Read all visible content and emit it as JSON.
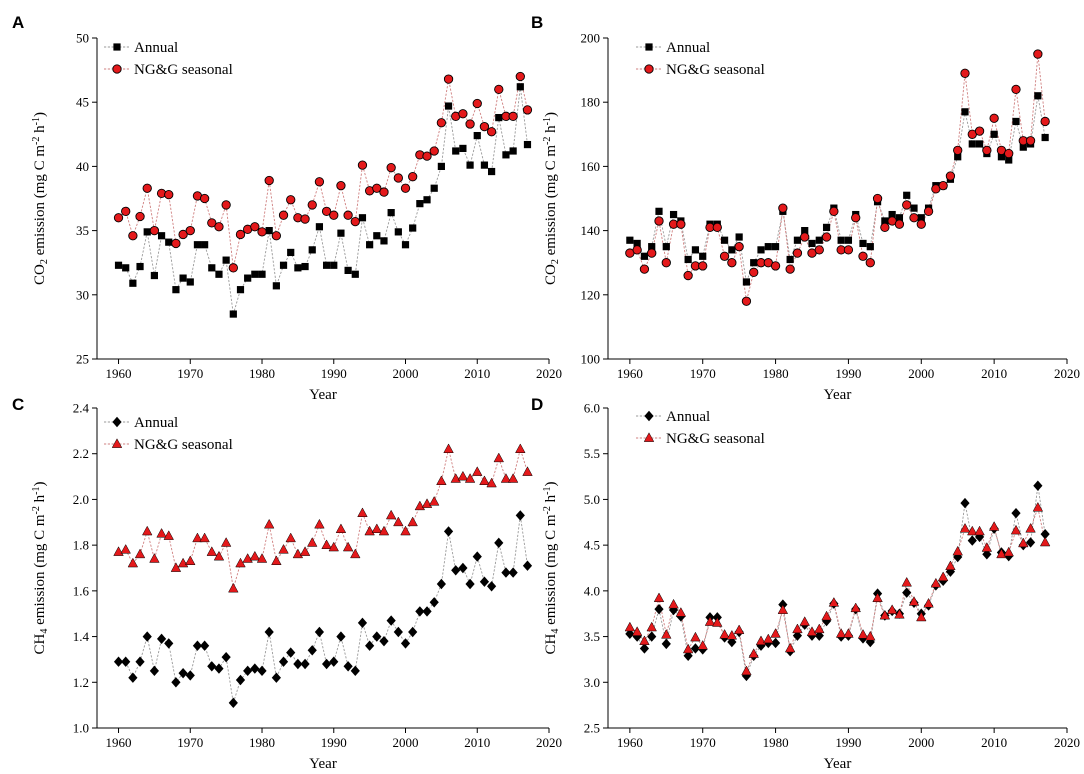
{
  "chart_data": [
    {
      "panel": "A",
      "type": "line",
      "marker_style": "square-circle",
      "ylabel_parts": [
        "CO",
        "2",
        " emission (mg C m",
        "-2",
        " h",
        "-1",
        ")"
      ],
      "xlabel": "Year",
      "xlim": [
        1957,
        2020
      ],
      "ylim": [
        25,
        50
      ],
      "xticks": [
        1960,
        1970,
        1980,
        1990,
        2000,
        2010,
        2020
      ],
      "yticks": [
        25,
        30,
        35,
        40,
        45,
        50
      ],
      "legend_position": "top-left",
      "x": [
        1960,
        1961,
        1962,
        1963,
        1964,
        1965,
        1966,
        1967,
        1968,
        1969,
        1970,
        1971,
        1972,
        1973,
        1974,
        1975,
        1976,
        1977,
        1978,
        1979,
        1980,
        1981,
        1982,
        1983,
        1984,
        1985,
        1986,
        1987,
        1988,
        1989,
        1990,
        1991,
        1992,
        1993,
        1994,
        1995,
        1996,
        1997,
        1998,
        1999,
        2000,
        2001,
        2002,
        2003,
        2004,
        2005,
        2006,
        2007,
        2008,
        2009,
        2010,
        2011,
        2012,
        2013,
        2014,
        2015,
        2016,
        2017
      ],
      "series": [
        {
          "name": "Annual",
          "values": [
            32.3,
            32.1,
            30.9,
            32.2,
            34.9,
            31.5,
            34.6,
            34.1,
            30.4,
            31.3,
            31.0,
            33.9,
            33.9,
            32.1,
            31.6,
            32.7,
            28.5,
            30.4,
            31.3,
            31.6,
            31.6,
            35.0,
            30.7,
            32.3,
            33.3,
            32.1,
            32.2,
            33.5,
            35.3,
            32.3,
            32.3,
            34.8,
            31.9,
            31.6,
            36.0,
            33.9,
            34.6,
            34.2,
            36.4,
            34.9,
            33.9,
            35.2,
            37.1,
            37.4,
            38.3,
            40.0,
            44.7,
            41.2,
            41.4,
            40.1,
            42.4,
            40.1,
            39.6,
            43.8,
            40.9,
            41.2,
            46.2,
            41.7
          ]
        },
        {
          "name": "NG&G seasonal",
          "values": [
            36.0,
            36.5,
            34.6,
            36.1,
            38.3,
            35.0,
            37.9,
            37.8,
            34.0,
            34.7,
            35.0,
            37.7,
            37.5,
            35.6,
            35.3,
            37.0,
            32.1,
            34.7,
            35.1,
            35.3,
            34.9,
            38.9,
            34.6,
            36.2,
            37.4,
            36.0,
            35.9,
            37.0,
            38.8,
            36.5,
            36.2,
            38.5,
            36.2,
            35.7,
            40.1,
            38.1,
            38.3,
            38.0,
            39.9,
            39.1,
            38.3,
            39.2,
            40.9,
            40.8,
            41.2,
            43.4,
            46.8,
            43.9,
            44.1,
            43.3,
            44.9,
            43.1,
            42.7,
            46.0,
            43.9,
            43.9,
            47.0,
            44.4
          ]
        }
      ]
    },
    {
      "panel": "B",
      "type": "line",
      "marker_style": "square-circle",
      "ylabel_parts": [
        "CO",
        "2",
        " emission (mg C m",
        "-2",
        " h",
        "-1",
        ")"
      ],
      "xlabel": "Year",
      "xlim": [
        1957,
        2020
      ],
      "ylim": [
        100,
        200
      ],
      "xticks": [
        1960,
        1970,
        1980,
        1990,
        2000,
        2010,
        2020
      ],
      "yticks": [
        100,
        120,
        140,
        160,
        180,
        200
      ],
      "legend_position": "top-left",
      "x": [
        1960,
        1961,
        1962,
        1963,
        1964,
        1965,
        1966,
        1967,
        1968,
        1969,
        1970,
        1971,
        1972,
        1973,
        1974,
        1975,
        1976,
        1977,
        1978,
        1979,
        1980,
        1981,
        1982,
        1983,
        1984,
        1985,
        1986,
        1987,
        1988,
        1989,
        1990,
        1991,
        1992,
        1993,
        1994,
        1995,
        1996,
        1997,
        1998,
        1999,
        2000,
        2001,
        2002,
        2003,
        2004,
        2005,
        2006,
        2007,
        2008,
        2009,
        2010,
        2011,
        2012,
        2013,
        2014,
        2015,
        2016,
        2017
      ],
      "series": [
        {
          "name": "Annual",
          "values": [
            137,
            136,
            132,
            135,
            146,
            135,
            145,
            143,
            131,
            134,
            132,
            142,
            142,
            137,
            134,
            138,
            124,
            130,
            134,
            135,
            135,
            146,
            131,
            137,
            140,
            136,
            137,
            141,
            147,
            137,
            137,
            145,
            136,
            135,
            149,
            143,
            145,
            144,
            151,
            147,
            144,
            147,
            154,
            154,
            156,
            163,
            177,
            167,
            167,
            164,
            170,
            163,
            162,
            174,
            166,
            167,
            182,
            169
          ]
        },
        {
          "name": "NG&G seasonal",
          "values": [
            133,
            134,
            128,
            133,
            143,
            130,
            142,
            142,
            126,
            129,
            129,
            141,
            141,
            132,
            130,
            135,
            118,
            127,
            130,
            130,
            129,
            147,
            128,
            133,
            138,
            133,
            134,
            138,
            146,
            134,
            134,
            144,
            132,
            130,
            150,
            141,
            143,
            142,
            148,
            144,
            142,
            146,
            153,
            154,
            157,
            165,
            189,
            170,
            171,
            165,
            175,
            165,
            164,
            184,
            168,
            168,
            195,
            174
          ]
        }
      ]
    },
    {
      "panel": "C",
      "type": "line",
      "marker_style": "diamond-triangle",
      "ylabel_parts": [
        "CH",
        "4",
        " emission (mg C m",
        "-2",
        " h",
        "-1",
        ")"
      ],
      "xlabel": "Year",
      "xlim": [
        1957,
        2020
      ],
      "ylim": [
        1.0,
        2.4
      ],
      "xticks": [
        1960,
        1970,
        1980,
        1990,
        2000,
        2010,
        2020
      ],
      "yticks": [
        "1.0",
        "1.2",
        "1.4",
        "1.6",
        "1.8",
        "2.0",
        "2.2",
        "2.4"
      ],
      "legend_position": "top-left",
      "x": [
        1960,
        1961,
        1962,
        1963,
        1964,
        1965,
        1966,
        1967,
        1968,
        1969,
        1970,
        1971,
        1972,
        1973,
        1974,
        1975,
        1976,
        1977,
        1978,
        1979,
        1980,
        1981,
        1982,
        1983,
        1984,
        1985,
        1986,
        1987,
        1988,
        1989,
        1990,
        1991,
        1992,
        1993,
        1994,
        1995,
        1996,
        1997,
        1998,
        1999,
        2000,
        2001,
        2002,
        2003,
        2004,
        2005,
        2006,
        2007,
        2008,
        2009,
        2010,
        2011,
        2012,
        2013,
        2014,
        2015,
        2016,
        2017
      ],
      "series": [
        {
          "name": "Annual",
          "values": [
            1.29,
            1.29,
            1.22,
            1.29,
            1.4,
            1.25,
            1.39,
            1.37,
            1.2,
            1.24,
            1.23,
            1.36,
            1.36,
            1.27,
            1.26,
            1.31,
            1.11,
            1.21,
            1.25,
            1.26,
            1.25,
            1.42,
            1.22,
            1.29,
            1.33,
            1.28,
            1.28,
            1.34,
            1.42,
            1.28,
            1.29,
            1.4,
            1.27,
            1.25,
            1.46,
            1.36,
            1.4,
            1.38,
            1.47,
            1.42,
            1.37,
            1.42,
            1.51,
            1.51,
            1.55,
            1.63,
            1.86,
            1.69,
            1.7,
            1.63,
            1.75,
            1.64,
            1.62,
            1.81,
            1.68,
            1.68,
            1.93,
            1.71
          ]
        },
        {
          "name": "NG&G seasonal",
          "values": [
            1.77,
            1.78,
            1.72,
            1.76,
            1.86,
            1.74,
            1.85,
            1.84,
            1.7,
            1.72,
            1.73,
            1.83,
            1.83,
            1.77,
            1.75,
            1.81,
            1.61,
            1.72,
            1.74,
            1.75,
            1.74,
            1.89,
            1.73,
            1.78,
            1.83,
            1.76,
            1.77,
            1.81,
            1.89,
            1.8,
            1.79,
            1.87,
            1.79,
            1.76,
            1.94,
            1.86,
            1.87,
            1.86,
            1.93,
            1.9,
            1.86,
            1.9,
            1.97,
            1.98,
            1.99,
            2.08,
            2.22,
            2.09,
            2.1,
            2.09,
            2.12,
            2.08,
            2.07,
            2.18,
            2.09,
            2.09,
            2.22,
            2.12
          ]
        }
      ]
    },
    {
      "panel": "D",
      "type": "line",
      "marker_style": "diamond-triangle",
      "ylabel_parts": [
        "CH",
        "4",
        " emission (mg C m",
        "-2",
        " h",
        "-1",
        ")"
      ],
      "xlabel": "Year",
      "xlim": [
        1957,
        2020
      ],
      "ylim": [
        2.5,
        6.0
      ],
      "xticks": [
        1960,
        1970,
        1980,
        1990,
        2000,
        2010,
        2020
      ],
      "yticks": [
        "2.5",
        "3.0",
        "3.5",
        "4.0",
        "4.5",
        "5.0",
        "5.5",
        "6.0"
      ],
      "legend_position": "top-left",
      "x": [
        1960,
        1961,
        1962,
        1963,
        1964,
        1965,
        1966,
        1967,
        1968,
        1969,
        1970,
        1971,
        1972,
        1973,
        1974,
        1975,
        1976,
        1977,
        1978,
        1979,
        1980,
        1981,
        1982,
        1983,
        1984,
        1985,
        1986,
        1987,
        1988,
        1989,
        1990,
        1991,
        1992,
        1993,
        1994,
        1995,
        1996,
        1997,
        1998,
        1999,
        2000,
        2001,
        2002,
        2003,
        2004,
        2005,
        2006,
        2007,
        2008,
        2009,
        2010,
        2011,
        2012,
        2013,
        2014,
        2015,
        2016,
        2017
      ],
      "series": [
        {
          "name": "Annual",
          "values": [
            3.53,
            3.5,
            3.37,
            3.5,
            3.8,
            3.42,
            3.79,
            3.72,
            3.29,
            3.37,
            3.36,
            3.71,
            3.71,
            3.49,
            3.44,
            3.55,
            3.07,
            3.29,
            3.4,
            3.43,
            3.43,
            3.85,
            3.34,
            3.51,
            3.63,
            3.51,
            3.51,
            3.67,
            3.86,
            3.5,
            3.51,
            3.8,
            3.48,
            3.44,
            3.97,
            3.73,
            3.78,
            3.75,
            3.98,
            3.87,
            3.75,
            3.84,
            4.06,
            4.11,
            4.21,
            4.37,
            4.96,
            4.55,
            4.59,
            4.4,
            4.68,
            4.42,
            4.38,
            4.85,
            4.5,
            4.53,
            5.15,
            4.62
          ]
        },
        {
          "name": "NG&G seasonal",
          "values": [
            3.6,
            3.55,
            3.45,
            3.6,
            3.92,
            3.52,
            3.85,
            3.76,
            3.36,
            3.49,
            3.4,
            3.66,
            3.65,
            3.52,
            3.51,
            3.57,
            3.12,
            3.31,
            3.45,
            3.47,
            3.53,
            3.79,
            3.37,
            3.58,
            3.66,
            3.55,
            3.58,
            3.72,
            3.87,
            3.53,
            3.53,
            3.81,
            3.52,
            3.5,
            3.92,
            3.73,
            3.79,
            3.74,
            4.09,
            3.88,
            3.71,
            3.86,
            4.08,
            4.15,
            4.27,
            4.43,
            4.68,
            4.65,
            4.65,
            4.47,
            4.7,
            4.4,
            4.42,
            4.66,
            4.52,
            4.68,
            4.91,
            4.53
          ]
        }
      ]
    }
  ],
  "style": {
    "annual_color": "#000000",
    "seasonal_color": "#e4191b",
    "annual_line_color": "#9a9a9a",
    "seasonal_line_color": "#cf7f7f",
    "axis_color": "#000000"
  }
}
